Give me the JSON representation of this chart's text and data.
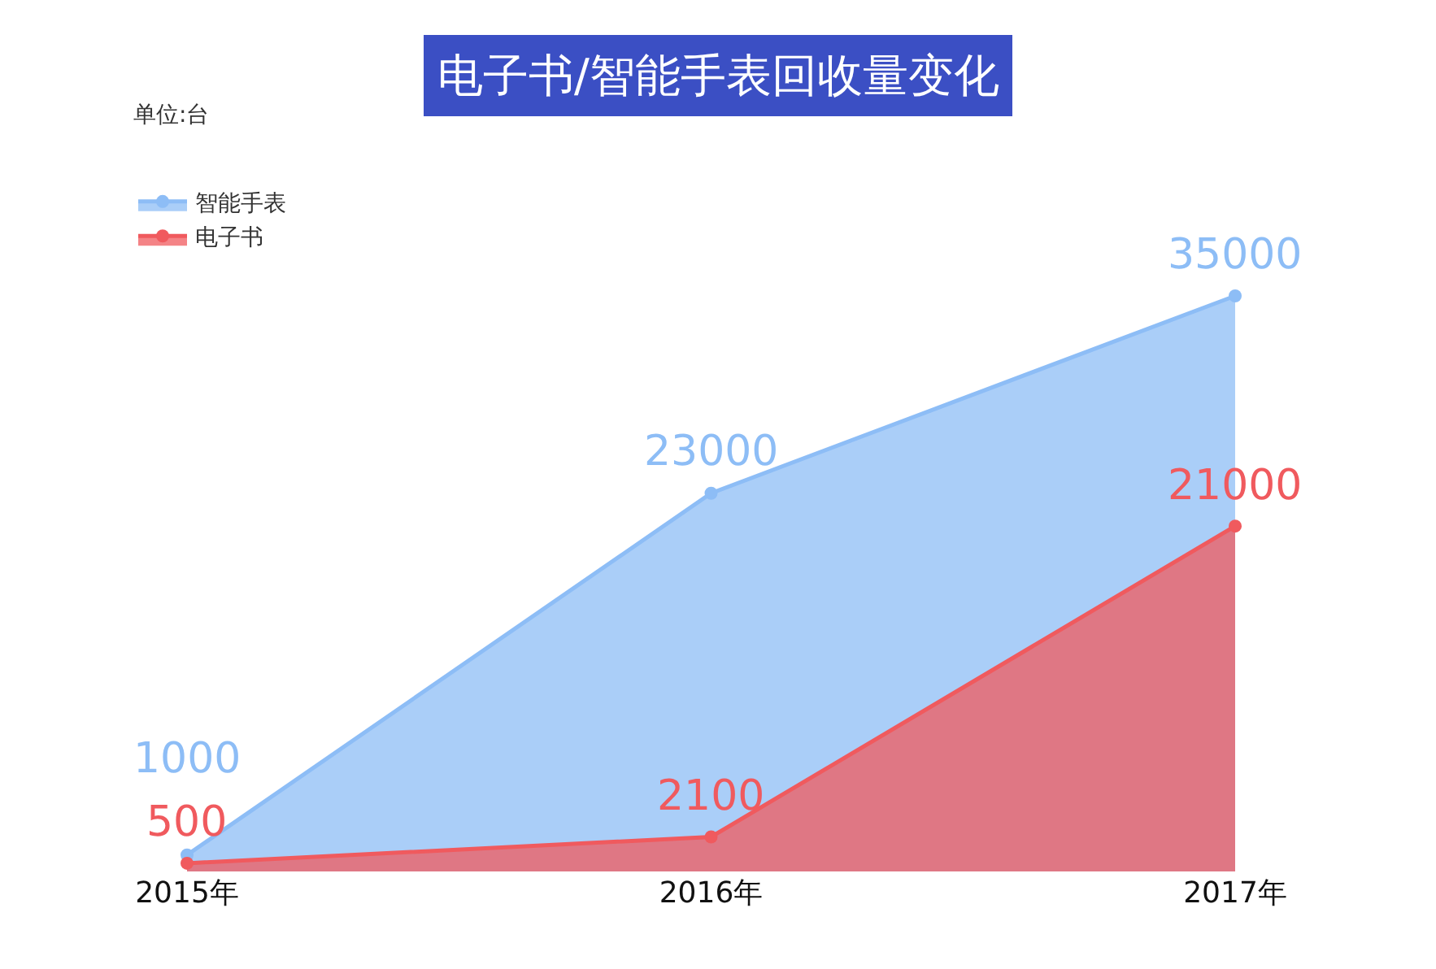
{
  "chart_data": {
    "type": "area",
    "title": "电子书/智能手表回收量变化",
    "annotations": [
      "单位:台"
    ],
    "categories": [
      "2015年",
      "2016年",
      "2017年"
    ],
    "series": [
      {
        "name": "智能手表",
        "color": "#8dbdf6",
        "values": [
          1000,
          23000,
          35000
        ]
      },
      {
        "name": "电子书",
        "color": "#f05a5e",
        "values": [
          500,
          2100,
          21000
        ]
      }
    ],
    "data_labels": true,
    "marker": "circle",
    "legend": "top left",
    "tick_labels": "x"
  }
}
